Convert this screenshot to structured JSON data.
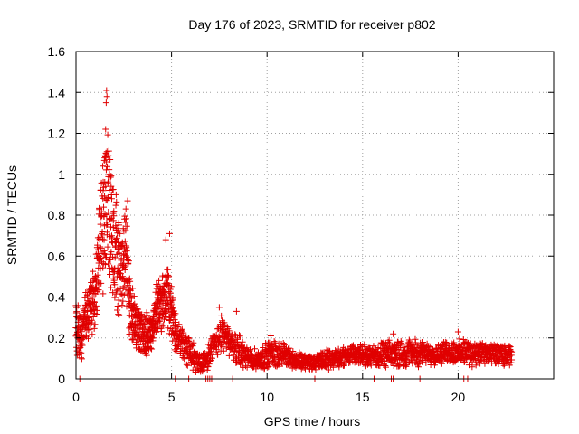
{
  "chart_data": {
    "type": "scatter",
    "title": "Day 176 of 2023, SRMTID for receiver p802",
    "xlabel": "GPS time / hours",
    "ylabel": "SRMTID / TECUs",
    "xlim": [
      0,
      25
    ],
    "ylim": [
      0,
      1.6
    ],
    "xticks": [
      0,
      5,
      10,
      15,
      20
    ],
    "xtick_labels": [
      "0",
      "5",
      "10",
      "15",
      "20"
    ],
    "yticks": [
      0,
      0.2,
      0.4,
      0.6,
      0.8,
      1.0,
      1.2,
      1.4,
      1.6
    ],
    "ytick_labels": [
      "0",
      "0.2",
      "0.4",
      "0.6",
      "0.8",
      "1",
      "1.2",
      "1.4",
      "1.6"
    ],
    "grid": true,
    "marker": "plus",
    "color": "#e00000",
    "envelope": [
      [
        0.0,
        0.25,
        0.12
      ],
      [
        0.3,
        0.2,
        0.08
      ],
      [
        0.5,
        0.3,
        0.1
      ],
      [
        0.8,
        0.35,
        0.1
      ],
      [
        1.0,
        0.4,
        0.12
      ],
      [
        1.2,
        0.6,
        0.2
      ],
      [
        1.5,
        0.8,
        0.25
      ],
      [
        1.7,
        0.9,
        0.3
      ],
      [
        2.0,
        0.6,
        0.2
      ],
      [
        2.3,
        0.55,
        0.18
      ],
      [
        2.6,
        0.6,
        0.18
      ],
      [
        2.8,
        0.35,
        0.12
      ],
      [
        3.2,
        0.25,
        0.08
      ],
      [
        3.6,
        0.22,
        0.08
      ],
      [
        4.0,
        0.25,
        0.08
      ],
      [
        4.4,
        0.38,
        0.12
      ],
      [
        4.8,
        0.4,
        0.12
      ],
      [
        5.0,
        0.3,
        0.1
      ],
      [
        5.3,
        0.2,
        0.08
      ],
      [
        5.8,
        0.15,
        0.06
      ],
      [
        6.2,
        0.1,
        0.05
      ],
      [
        6.6,
        0.08,
        0.04
      ],
      [
        7.0,
        0.12,
        0.05
      ],
      [
        7.3,
        0.18,
        0.06
      ],
      [
        7.6,
        0.22,
        0.07
      ],
      [
        8.0,
        0.18,
        0.06
      ],
      [
        8.4,
        0.15,
        0.06
      ],
      [
        9.0,
        0.1,
        0.04
      ],
      [
        9.6,
        0.09,
        0.04
      ],
      [
        10.2,
        0.13,
        0.05
      ],
      [
        10.8,
        0.12,
        0.05
      ],
      [
        11.5,
        0.09,
        0.03
      ],
      [
        12.5,
        0.08,
        0.03
      ],
      [
        13.5,
        0.1,
        0.04
      ],
      [
        14.5,
        0.12,
        0.04
      ],
      [
        15.5,
        0.11,
        0.04
      ],
      [
        16.5,
        0.12,
        0.05
      ],
      [
        17.5,
        0.13,
        0.05
      ],
      [
        18.5,
        0.12,
        0.04
      ],
      [
        19.5,
        0.13,
        0.04
      ],
      [
        20.5,
        0.13,
        0.05
      ],
      [
        21.5,
        0.12,
        0.04
      ],
      [
        22.8,
        0.11,
        0.04
      ]
    ],
    "notable_points": [
      {
        "x": 1.6,
        "y": 1.41
      },
      {
        "x": 1.62,
        "y": 1.38
      },
      {
        "x": 1.58,
        "y": 1.35
      },
      {
        "x": 1.55,
        "y": 1.22
      },
      {
        "x": 1.6,
        "y": 1.1
      },
      {
        "x": 1.5,
        "y": 1.08
      },
      {
        "x": 1.4,
        "y": 1.04
      },
      {
        "x": 1.75,
        "y": 1.0
      },
      {
        "x": 2.1,
        "y": 0.9
      },
      {
        "x": 2.7,
        "y": 0.87
      },
      {
        "x": 4.9,
        "y": 0.71
      },
      {
        "x": 4.7,
        "y": 0.68
      },
      {
        "x": 8.4,
        "y": 0.33
      },
      {
        "x": 7.5,
        "y": 0.35
      },
      {
        "x": 10.2,
        "y": 0.21
      },
      {
        "x": 16.6,
        "y": 0.22
      },
      {
        "x": 20.0,
        "y": 0.23
      }
    ],
    "zero_points_x": [
      0.2,
      5.2,
      5.9,
      6.7,
      6.8,
      6.9,
      7.0,
      7.1,
      8.2,
      12.5,
      15.6,
      16.5,
      16.6,
      18.0,
      20.3,
      20.5
    ]
  }
}
